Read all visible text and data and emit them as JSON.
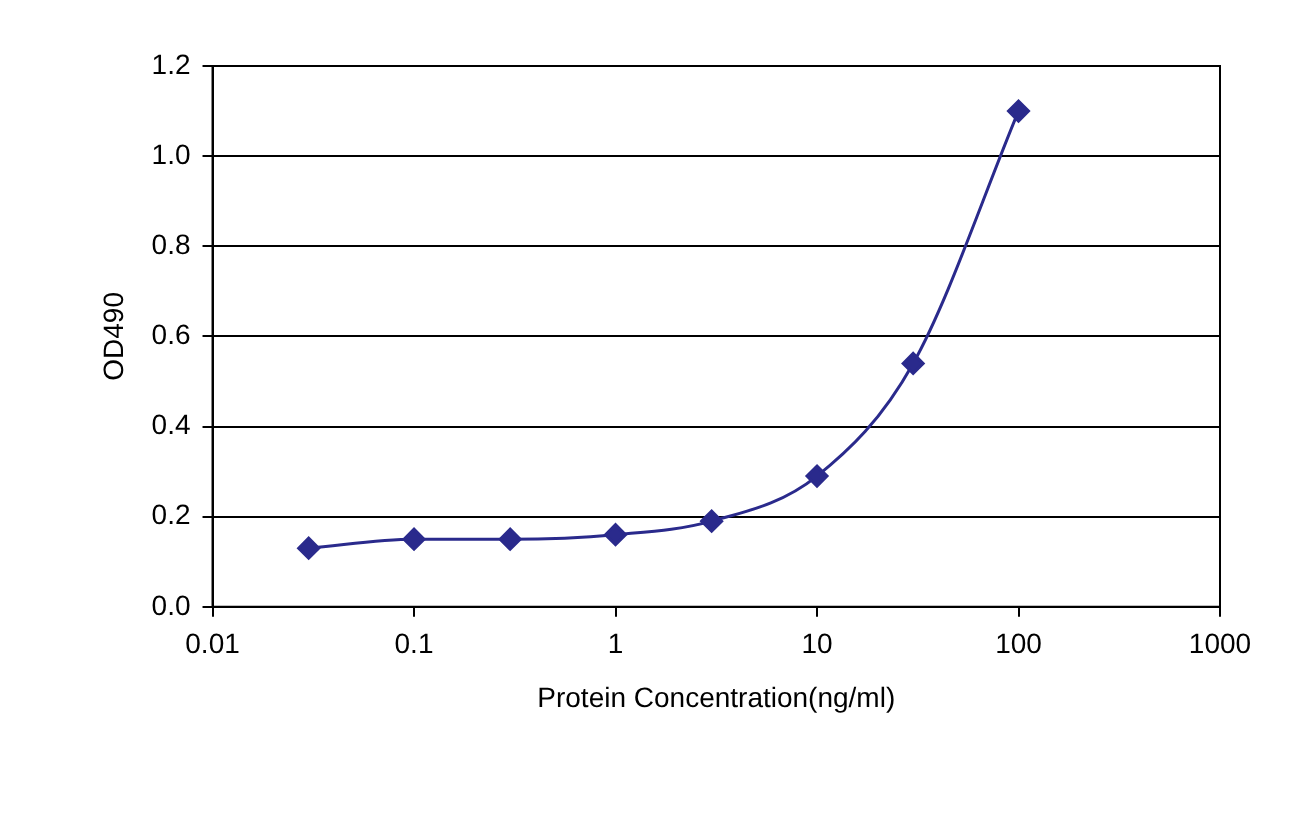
{
  "chart_data": {
    "type": "line",
    "xlabel": "Protein Concentration(ng/ml)",
    "ylabel": "OD490",
    "log": "x",
    "grid": "y",
    "legend": false,
    "marker": "diamond",
    "line_style": "solid",
    "x": [
      0.03,
      0.1,
      0.3,
      1,
      3,
      10,
      30,
      100
    ],
    "series": [
      {
        "color": "#2a2a8c",
        "values": [
          0.13,
          0.15,
          0.15,
          0.16,
          0.19,
          0.29,
          0.54,
          1.1
        ]
      }
    ],
    "xlim": [
      0.01,
      1000
    ],
    "xticks": [
      0.01,
      0.1,
      1,
      10,
      100,
      1000
    ],
    "ylim": [
      0,
      1.2
    ],
    "yticks": [
      {
        "value": 0,
        "label": "0.0"
      },
      {
        "value": 0.2,
        "label": "0.2"
      },
      {
        "value": 0.4,
        "label": "0.4"
      },
      {
        "value": 0.6,
        "label": "0.6"
      },
      {
        "value": 0.8,
        "label": "0.8"
      },
      {
        "value": 1,
        "label": "1.0"
      },
      {
        "value": 1.2,
        "label": "1.2"
      }
    ]
  }
}
